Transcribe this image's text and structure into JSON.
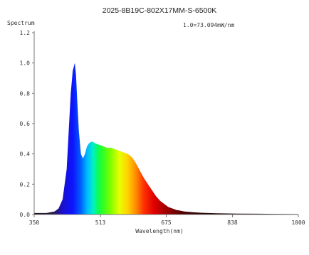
{
  "chart_data": {
    "type": "area",
    "title": "2025-8B19C-802X17MM-S-6500K",
    "annotation": "1.0=73.094mW/nm",
    "ylabel": "Spectrum",
    "xlabel": "Wavelength(nm)",
    "xlim": [
      350,
      1000
    ],
    "ylim": [
      0,
      1.2
    ],
    "x_ticks": [
      {
        "value": 350,
        "label": "350"
      },
      {
        "value": 513,
        "label": "513"
      },
      {
        "value": 675,
        "label": "675"
      },
      {
        "value": 838,
        "label": "838"
      },
      {
        "value": 1000,
        "label": "1000"
      }
    ],
    "y_ticks": [
      {
        "value": 0.0,
        "label": "0.0"
      },
      {
        "value": 0.2,
        "label": "0.2"
      },
      {
        "value": 0.4,
        "label": "0.4"
      },
      {
        "value": 0.6,
        "label": "0.6"
      },
      {
        "value": 0.8,
        "label": "0.8"
      },
      {
        "value": 1.0,
        "label": "1.0"
      },
      {
        "value": 1.2,
        "label": "1.2"
      }
    ],
    "grid": false,
    "series": [
      {
        "x": [
          350,
          380,
          400,
          410,
          420,
          430,
          435,
          440,
          445,
          450,
          453,
          456,
          460,
          465,
          470,
          475,
          480,
          485,
          490,
          495,
          500,
          510,
          520,
          530,
          540,
          550,
          560,
          570,
          580,
          590,
          600,
          610,
          620,
          630,
          640,
          650,
          660,
          670,
          680,
          690,
          700,
          710,
          720,
          740,
          760,
          780,
          800,
          850,
          900,
          1000
        ],
        "y": [
          0.01,
          0.01,
          0.02,
          0.04,
          0.1,
          0.3,
          0.55,
          0.8,
          0.95,
          1.0,
          0.92,
          0.75,
          0.55,
          0.4,
          0.37,
          0.4,
          0.45,
          0.47,
          0.48,
          0.48,
          0.47,
          0.46,
          0.45,
          0.44,
          0.44,
          0.43,
          0.42,
          0.41,
          0.4,
          0.38,
          0.34,
          0.29,
          0.24,
          0.2,
          0.16,
          0.12,
          0.09,
          0.07,
          0.05,
          0.04,
          0.03,
          0.025,
          0.02,
          0.015,
          0.012,
          0.01,
          0.008,
          0.006,
          0.005,
          0.003
        ]
      }
    ]
  }
}
